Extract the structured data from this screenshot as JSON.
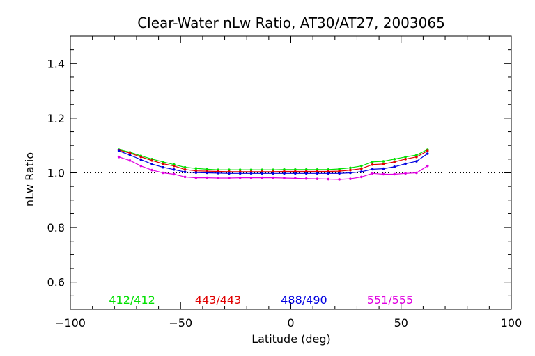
{
  "chart_data": {
    "type": "line",
    "title": "Clear-Water nLw Ratio, AT30/AT27, 2003065",
    "xlabel": "Latitude (deg)",
    "ylabel": "nLw Ratio",
    "xlim": [
      -100,
      100
    ],
    "ylim": [
      0.5,
      1.5
    ],
    "x_ticks": [
      -100,
      -50,
      0,
      50,
      100
    ],
    "x_tick_labels": [
      "−100",
      "−50",
      "0",
      "50",
      "100"
    ],
    "y_ticks": [
      0.6,
      0.8,
      1.0,
      1.2,
      1.4
    ],
    "y_tick_labels": [
      "0.6",
      "0.8",
      "1.0",
      "1.2",
      "1.4"
    ],
    "reference_line": 1.0,
    "legend_placement": "bottom",
    "x": [
      -78,
      -73,
      -68,
      -63,
      -58,
      -53,
      -48,
      -43,
      -38,
      -33,
      -28,
      -23,
      -18,
      -13,
      -8,
      -3,
      2,
      7,
      12,
      17,
      22,
      27,
      32,
      37,
      42,
      47,
      52,
      57,
      62
    ],
    "series": [
      {
        "name": "412/412",
        "color": "#00e000",
        "values": [
          1.085,
          1.075,
          1.062,
          1.05,
          1.04,
          1.03,
          1.02,
          1.016,
          1.013,
          1.011,
          1.011,
          1.011,
          1.011,
          1.011,
          1.011,
          1.012,
          1.012,
          1.012,
          1.012,
          1.012,
          1.014,
          1.018,
          1.025,
          1.04,
          1.042,
          1.05,
          1.058,
          1.065,
          1.085
        ]
      },
      {
        "name": "443/443",
        "color": "#e00000",
        "values": [
          1.083,
          1.072,
          1.058,
          1.045,
          1.033,
          1.025,
          1.012,
          1.007,
          1.006,
          1.005,
          1.004,
          1.004,
          1.004,
          1.004,
          1.004,
          1.005,
          1.005,
          1.005,
          1.005,
          1.005,
          1.006,
          1.01,
          1.015,
          1.03,
          1.032,
          1.04,
          1.05,
          1.058,
          1.08
        ]
      },
      {
        "name": "488/490",
        "color": "#0000e0",
        "values": [
          1.08,
          1.065,
          1.048,
          1.032,
          1.02,
          1.012,
          1.003,
          1.001,
          1.0,
          0.999,
          0.998,
          0.998,
          0.998,
          0.998,
          0.998,
          0.998,
          0.998,
          0.998,
          0.998,
          0.998,
          0.998,
          1.0,
          1.004,
          1.013,
          1.015,
          1.022,
          1.033,
          1.042,
          1.07
        ]
      },
      {
        "name": "551/555",
        "color": "#e000e0",
        "values": [
          1.058,
          1.045,
          1.025,
          1.01,
          1.0,
          0.995,
          0.985,
          0.982,
          0.982,
          0.981,
          0.981,
          0.982,
          0.982,
          0.982,
          0.982,
          0.981,
          0.98,
          0.979,
          0.978,
          0.977,
          0.976,
          0.978,
          0.985,
          0.998,
          0.995,
          0.995,
          0.998,
          1.0,
          1.025
        ]
      }
    ]
  }
}
